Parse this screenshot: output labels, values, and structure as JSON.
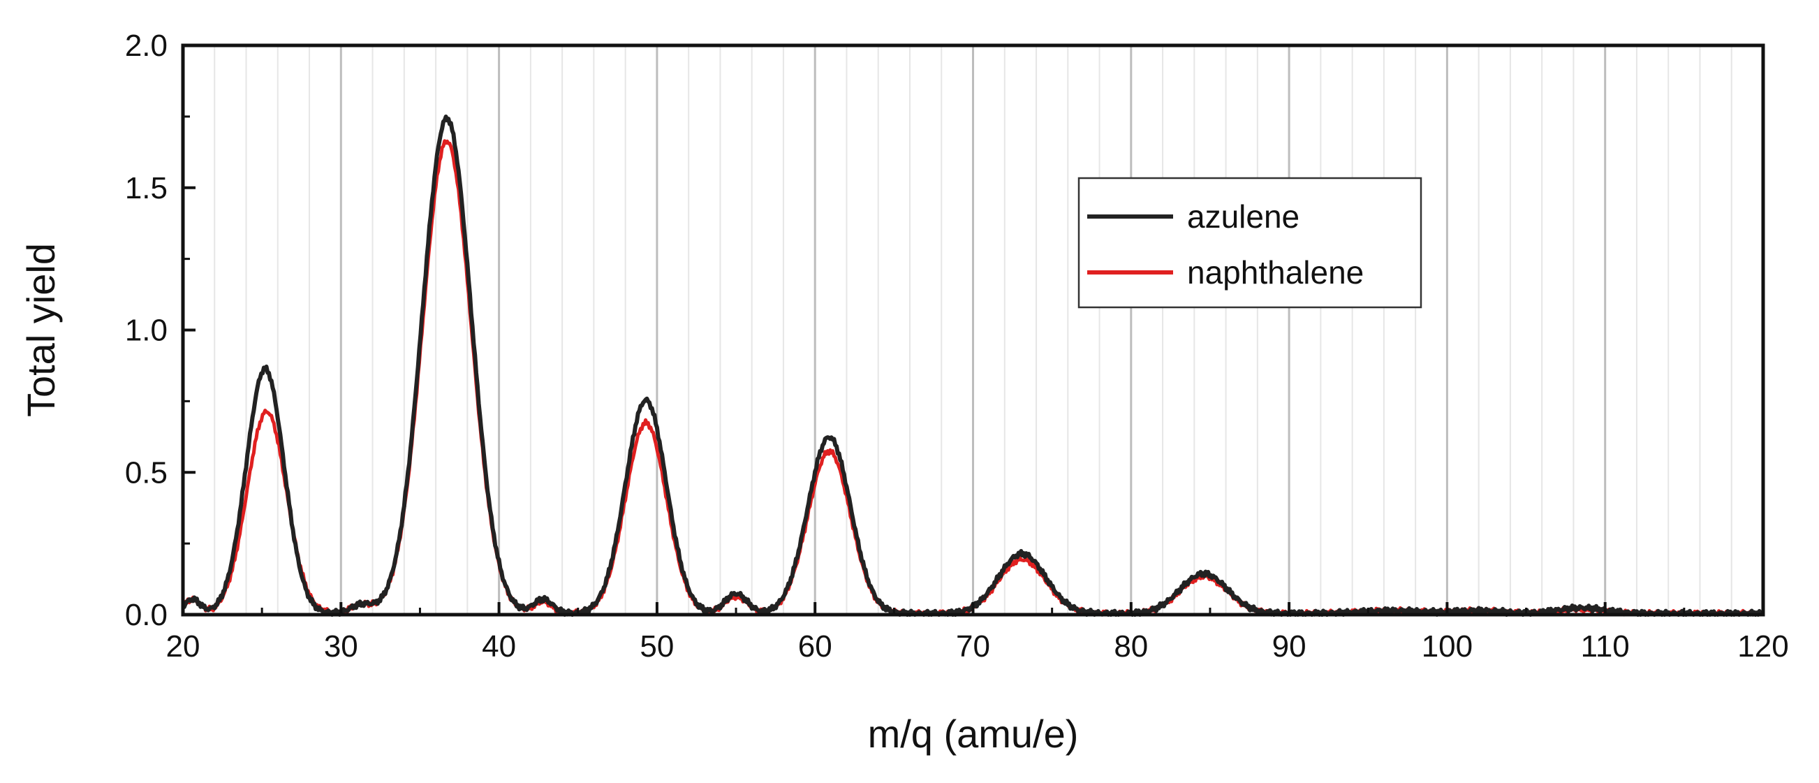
{
  "chart_data": {
    "type": "line",
    "title": "",
    "xlabel": "m/q (amu/e)",
    "ylabel": "Total yield",
    "xlim": [
      20,
      120
    ],
    "ylim": [
      0,
      2.0
    ],
    "x_ticks": [
      20,
      30,
      40,
      50,
      60,
      70,
      80,
      90,
      100,
      110,
      120
    ],
    "x_tick_labels": [
      "20",
      "30",
      "40",
      "50",
      "60",
      "70",
      "80",
      "90",
      "100",
      "110",
      "120"
    ],
    "y_ticks": [
      0,
      0.5,
      1.0,
      1.5,
      2.0
    ],
    "y_tick_labels": [
      "0.0",
      "0.5",
      "1.0",
      "1.5",
      "2.0"
    ],
    "grid": "vertical",
    "legend_position": "top-right",
    "series": [
      {
        "name": "azulene",
        "color": "#222222",
        "peaks": [
          {
            "x": 20.6,
            "height": 0.05,
            "width": 0.5
          },
          {
            "x": 25.2,
            "height": 0.86,
            "width": 1.2
          },
          {
            "x": 31.3,
            "height": 0.03,
            "width": 0.7
          },
          {
            "x": 36.7,
            "height": 1.74,
            "width": 1.55
          },
          {
            "x": 42.8,
            "height": 0.05,
            "width": 0.6
          },
          {
            "x": 49.3,
            "height": 0.75,
            "width": 1.3
          },
          {
            "x": 55.0,
            "height": 0.07,
            "width": 0.7
          },
          {
            "x": 60.9,
            "height": 0.62,
            "width": 1.35
          },
          {
            "x": 73.1,
            "height": 0.21,
            "width": 1.5
          },
          {
            "x": 84.6,
            "height": 0.14,
            "width": 1.5
          },
          {
            "x": 96.5,
            "height": 0.01,
            "width": 2.0
          },
          {
            "x": 102.0,
            "height": 0.01,
            "width": 1.5
          },
          {
            "x": 108.5,
            "height": 0.02,
            "width": 1.5
          }
        ]
      },
      {
        "name": "naphthalene",
        "color": "#e02020",
        "peaks": [
          {
            "x": 20.6,
            "height": 0.05,
            "width": 0.5
          },
          {
            "x": 25.3,
            "height": 0.71,
            "width": 1.25
          },
          {
            "x": 31.3,
            "height": 0.03,
            "width": 0.7
          },
          {
            "x": 36.7,
            "height": 1.66,
            "width": 1.55
          },
          {
            "x": 42.8,
            "height": 0.04,
            "width": 0.6
          },
          {
            "x": 49.3,
            "height": 0.67,
            "width": 1.3
          },
          {
            "x": 55.0,
            "height": 0.06,
            "width": 0.7
          },
          {
            "x": 60.9,
            "height": 0.57,
            "width": 1.35
          },
          {
            "x": 73.1,
            "height": 0.19,
            "width": 1.5
          },
          {
            "x": 84.6,
            "height": 0.13,
            "width": 1.5
          },
          {
            "x": 96.5,
            "height": 0.01,
            "width": 2.0
          },
          {
            "x": 102.0,
            "height": 0.01,
            "width": 1.5
          },
          {
            "x": 108.5,
            "height": 0.015,
            "width": 1.5
          }
        ]
      }
    ]
  }
}
